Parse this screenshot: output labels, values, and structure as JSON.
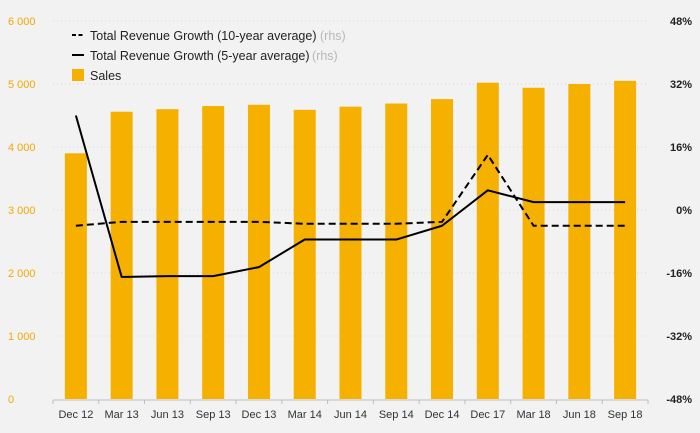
{
  "colors": {
    "bar": "#f5b000",
    "left_axis_text": "#f5a800",
    "line": "#000000",
    "background": "#f2f2f2",
    "grid": "#d6d6d6"
  },
  "chart_data": {
    "type": "bar",
    "categories": [
      "Dec 12",
      "Mar 13",
      "Jun 13",
      "Sep 13",
      "Dec 13",
      "Mar 14",
      "Jun 14",
      "Sep 14",
      "Dec 14",
      "Dec 17",
      "Mar 18",
      "Jun 18",
      "Sep 18"
    ],
    "series": [
      {
        "name": "Sales",
        "type": "bar",
        "axis": "left",
        "values": [
          3900,
          4560,
          4600,
          4650,
          4670,
          4590,
          4640,
          4690,
          4760,
          5020,
          4940,
          5000,
          5050
        ]
      },
      {
        "name": "Total Revenue Growth (10-year average)",
        "type": "line",
        "style": "dashed",
        "axis": "right",
        "values": [
          -4,
          -3,
          -3,
          -3,
          -3,
          -3.5,
          -3.5,
          -3.5,
          -3,
          14,
          -4,
          -4,
          -4
        ]
      },
      {
        "name": "Total Revenue Growth (5-year average)",
        "type": "line",
        "style": "solid",
        "axis": "right",
        "values": [
          24,
          -17,
          -16.8,
          -16.8,
          -14.5,
          -7.5,
          -7.5,
          -7.5,
          -4,
          5,
          2,
          2,
          2
        ]
      }
    ],
    "y_left": {
      "range": [
        0,
        6000
      ],
      "ticks": [
        0,
        1000,
        2000,
        3000,
        4000,
        5000,
        6000
      ],
      "tick_labels": [
        "0",
        "1 000",
        "2 000",
        "3 000",
        "4 000",
        "5 000",
        "6 000"
      ]
    },
    "y_right": {
      "range": [
        -48,
        48
      ],
      "ticks": [
        -48,
        -32,
        -16,
        0,
        16,
        32,
        48
      ],
      "tick_labels": [
        "-48%",
        "-32%",
        "-16%",
        "0%",
        "16%",
        "32%",
        "48%"
      ]
    },
    "legend": {
      "position": "top-left",
      "items": [
        {
          "label": "Total Revenue Growth (10-year average)",
          "note": "(rhs)",
          "marker": "dashed-line"
        },
        {
          "label": "Total Revenue Growth (5-year average)",
          "note": "(rhs)",
          "marker": "solid-line"
        },
        {
          "label": "Sales",
          "note": "",
          "marker": "bar"
        }
      ]
    },
    "grid": true
  }
}
